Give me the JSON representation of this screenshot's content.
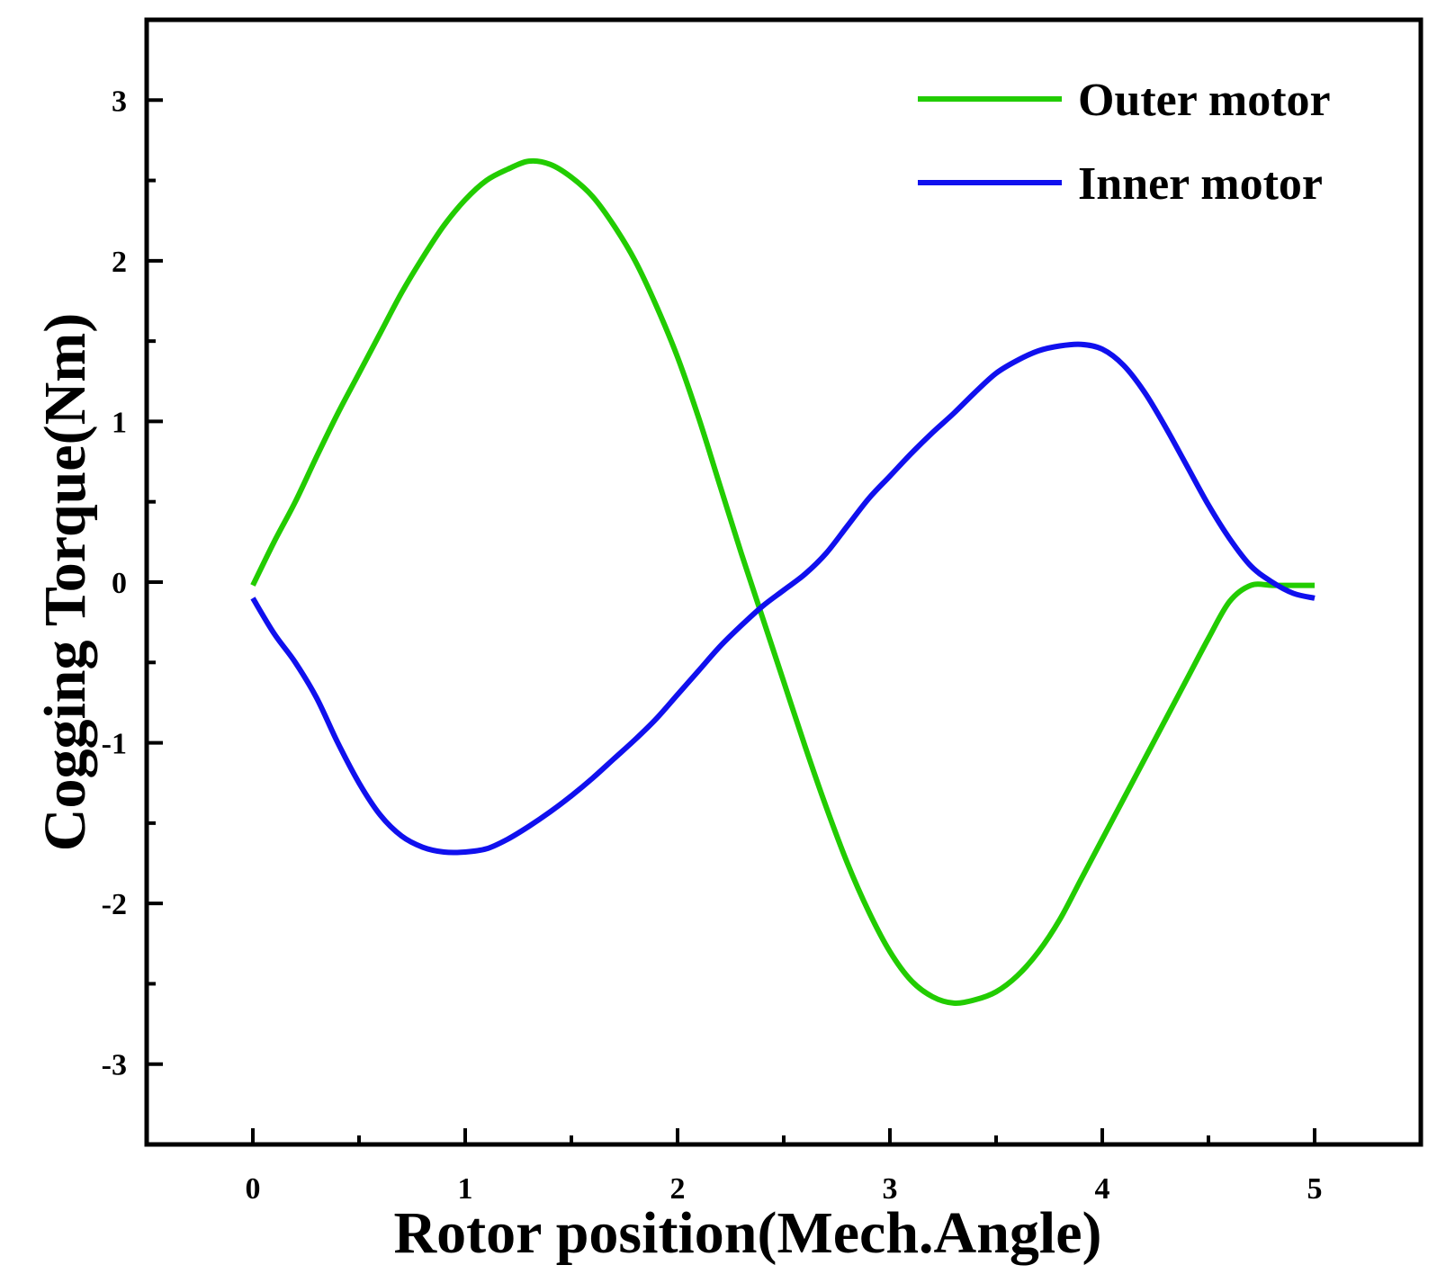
{
  "chart_data": {
    "type": "line",
    "title": "",
    "xlabel": "Rotor position(Mech.Angle)",
    "ylabel": "Cogging Torque(Nm)",
    "xlim": [
      -0.5,
      5.5
    ],
    "ylim": [
      -3.5,
      3.5
    ],
    "xticks": [
      0,
      1,
      2,
      3,
      4,
      5
    ],
    "xtick_labels": [
      "0",
      "1",
      "2",
      "3",
      "4",
      "5"
    ],
    "yticks": [
      -3,
      -2,
      -1,
      0,
      1,
      2,
      3
    ],
    "ytick_labels": [
      "-3",
      "-2",
      "-1",
      "0",
      "1",
      "2",
      "3"
    ],
    "grid": false,
    "legend": "top-right",
    "series": [
      {
        "name": "Outer motor",
        "color": "#22cc00",
        "x": [
          0,
          0.1,
          0.2,
          0.3,
          0.4,
          0.5,
          0.6,
          0.7,
          0.8,
          0.9,
          1.0,
          1.1,
          1.2,
          1.3,
          1.4,
          1.5,
          1.6,
          1.7,
          1.8,
          1.9,
          2.0,
          2.1,
          2.2,
          2.3,
          2.4,
          2.5,
          2.6,
          2.7,
          2.8,
          2.9,
          3.0,
          3.1,
          3.2,
          3.3,
          3.4,
          3.5,
          3.6,
          3.7,
          3.8,
          3.9,
          4.0,
          4.1,
          4.2,
          4.3,
          4.4,
          4.5,
          4.6,
          4.7,
          4.8,
          4.9,
          5.0
        ],
        "y": [
          -0.02,
          0.25,
          0.5,
          0.78,
          1.05,
          1.3,
          1.55,
          1.8,
          2.02,
          2.22,
          2.38,
          2.5,
          2.57,
          2.62,
          2.6,
          2.52,
          2.4,
          2.22,
          2.0,
          1.72,
          1.4,
          1.02,
          0.6,
          0.18,
          -0.22,
          -0.62,
          -1.02,
          -1.4,
          -1.75,
          -2.05,
          -2.3,
          -2.48,
          -2.58,
          -2.62,
          -2.6,
          -2.55,
          -2.45,
          -2.3,
          -2.1,
          -1.85,
          -1.6,
          -1.35,
          -1.1,
          -0.85,
          -0.6,
          -0.35,
          -0.12,
          -0.02,
          -0.02,
          -0.02,
          -0.02
        ]
      },
      {
        "name": "Inner motor",
        "color": "#1010ee",
        "x": [
          0,
          0.1,
          0.2,
          0.3,
          0.4,
          0.5,
          0.6,
          0.7,
          0.8,
          0.9,
          1.0,
          1.1,
          1.2,
          1.3,
          1.4,
          1.5,
          1.6,
          1.7,
          1.8,
          1.9,
          2.0,
          2.1,
          2.2,
          2.3,
          2.4,
          2.5,
          2.6,
          2.7,
          2.8,
          2.9,
          3.0,
          3.1,
          3.2,
          3.3,
          3.4,
          3.5,
          3.6,
          3.7,
          3.8,
          3.9,
          4.0,
          4.1,
          4.2,
          4.3,
          4.4,
          4.5,
          4.6,
          4.7,
          4.8,
          4.9,
          5.0
        ],
        "y": [
          -0.1,
          -0.32,
          -0.5,
          -0.72,
          -1.0,
          -1.25,
          -1.45,
          -1.58,
          -1.65,
          -1.68,
          -1.68,
          -1.66,
          -1.6,
          -1.52,
          -1.43,
          -1.33,
          -1.22,
          -1.1,
          -0.98,
          -0.85,
          -0.7,
          -0.55,
          -0.4,
          -0.27,
          -0.15,
          -0.05,
          0.05,
          0.18,
          0.35,
          0.52,
          0.66,
          0.8,
          0.93,
          1.05,
          1.18,
          1.3,
          1.38,
          1.44,
          1.47,
          1.48,
          1.45,
          1.35,
          1.18,
          0.96,
          0.72,
          0.48,
          0.27,
          0.1,
          0.0,
          -0.07,
          -0.1
        ]
      }
    ]
  }
}
